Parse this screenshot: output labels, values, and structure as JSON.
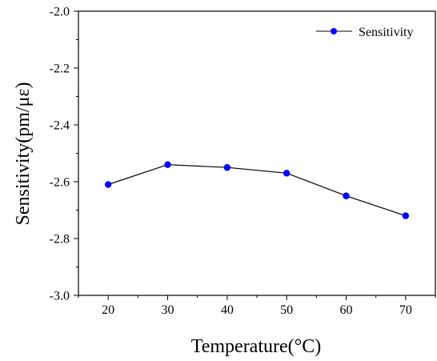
{
  "chart_data": {
    "type": "line",
    "title": "",
    "xlabel": "Temperature(°C)",
    "ylabel": "Sensitivity(pm/με)",
    "xlim": [
      15,
      75
    ],
    "ylim": [
      -3.0,
      -2.0
    ],
    "x_ticks": [
      20,
      30,
      40,
      50,
      60,
      70
    ],
    "x_tick_labels": [
      "20",
      "30",
      "40",
      "50",
      "60",
      "70"
    ],
    "y_ticks": [
      -3.0,
      -2.8,
      -2.6,
      -2.4,
      -2.2,
      -2.0
    ],
    "y_tick_labels": [
      "-3.0",
      "-2.8",
      "-2.6",
      "-2.4",
      "-2.2",
      "-2.0"
    ],
    "grid": false,
    "legend_position": "top-right",
    "series": [
      {
        "name": "Sensitivity",
        "marker_color": "#0000ff",
        "line_color": "#000000",
        "x": [
          20,
          30,
          40,
          50,
          60,
          70
        ],
        "y": [
          -2.61,
          -2.54,
          -2.55,
          -2.57,
          -2.65,
          -2.72
        ]
      }
    ]
  }
}
